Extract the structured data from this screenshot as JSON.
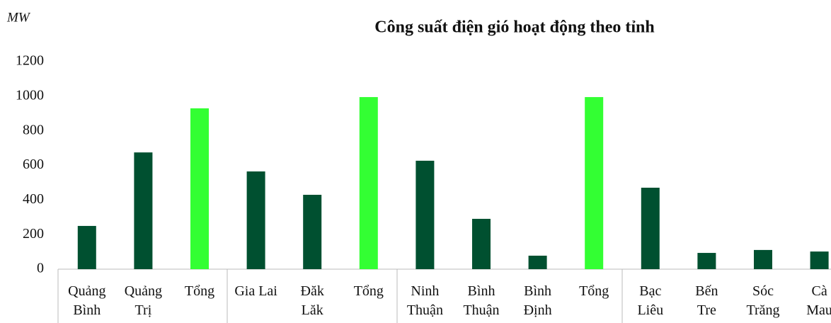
{
  "chart_data": {
    "type": "bar",
    "title": "Công suất điện gió hoạt động theo tỉnh",
    "y_label": "MW",
    "categories": [
      "Quảng\nBình",
      "Quảng\nTrị",
      "Tổng",
      "Gia Lai",
      "Đăk\nLăk",
      "Tổng",
      "Ninh\nThuận",
      "Bình\nThuận",
      "Bình\nĐịnh",
      "Tổng",
      "Bạc\nLiêu",
      "Bến\nTre",
      "Sóc\nTrăng",
      "Cà\nMau"
    ],
    "values": [
      250,
      675,
      930,
      565,
      430,
      995,
      627,
      291,
      78,
      995,
      471,
      94,
      111,
      102
    ],
    "colors": [
      "#005030",
      "#005030",
      "#33ff33",
      "#005030",
      "#005030",
      "#33ff33",
      "#005030",
      "#005030",
      "#005030",
      "#33ff33",
      "#005030",
      "#005030",
      "#005030",
      "#005030"
    ],
    "ylim": [
      0,
      1200
    ],
    "yticks": [
      0,
      200,
      400,
      600,
      800,
      1000,
      1200
    ],
    "grid": false
  }
}
